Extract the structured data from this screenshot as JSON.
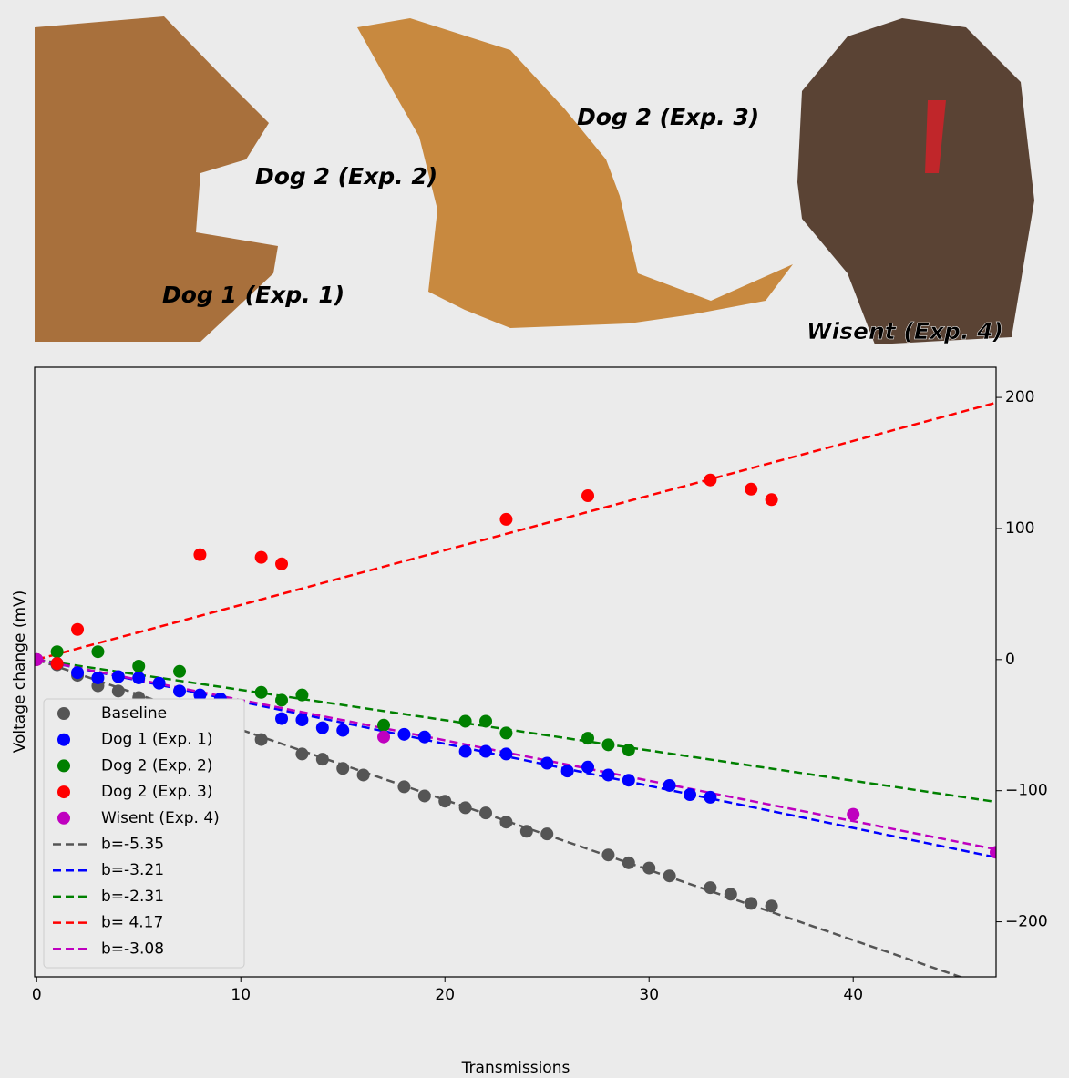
{
  "photo_labels": [
    "Dog 1 (Exp. 1)",
    "Dog 2 (Exp. 2)",
    "Dog 2 (Exp. 3)",
    "Wisent (Exp. 4)"
  ],
  "chart_data": {
    "type": "scatter",
    "xlabel": "Transmissions",
    "ylabel": "Voltage change (mV)",
    "xlim": [
      -0.1,
      47
    ],
    "ylim": [
      -242,
      223
    ],
    "xticks": [
      0,
      10,
      20,
      30,
      40
    ],
    "yticks": [
      {
        "value": -200,
        "label": "−200"
      },
      {
        "value": -100,
        "label": "−100"
      },
      0,
      100,
      200
    ],
    "legend": "lower left",
    "series": [
      {
        "name": "Baseline",
        "color": "#555555",
        "x": [
          0,
          1,
          2,
          3,
          4,
          5,
          6,
          8,
          11,
          13,
          14,
          15,
          16,
          18,
          19,
          20,
          21,
          22,
          23,
          24,
          25,
          28,
          29,
          30,
          31,
          33,
          34,
          35,
          36
        ],
        "values": [
          0,
          -4,
          -12,
          -20,
          -24,
          -29,
          -36,
          -45,
          -61,
          -72,
          -76,
          -83,
          -88,
          -97,
          -104,
          -108,
          -113,
          -117,
          -124,
          -131,
          -133,
          -149,
          -155,
          -159,
          -165,
          -174,
          -179,
          -186,
          -188
        ]
      },
      {
        "name": "Dog 1 (Exp. 1)",
        "color": "#0000ff",
        "x": [
          0,
          1,
          2,
          3,
          4,
          5,
          6,
          7,
          8,
          9,
          12,
          13,
          14,
          15,
          18,
          19,
          21,
          22,
          23,
          25,
          26,
          27,
          28,
          29,
          31,
          32,
          33
        ],
        "values": [
          0,
          -3,
          -10,
          -14,
          -13,
          -14,
          -18,
          -24,
          -27,
          -30,
          -45,
          -46,
          -52,
          -54,
          -57,
          -59,
          -70,
          -70,
          -72,
          -79,
          -85,
          -82,
          -88,
          -92,
          -96,
          -103,
          -105
        ]
      },
      {
        "name": "Dog 2 (Exp. 2)",
        "color": "#008000",
        "x": [
          1,
          3,
          5,
          7,
          11,
          12,
          13,
          17,
          21,
          22,
          23,
          27,
          28,
          29
        ],
        "values": [
          6,
          6,
          -5,
          -9,
          -25,
          -31,
          -27,
          -50,
          -47,
          -47,
          -56,
          -60,
          -65,
          -69
        ]
      },
      {
        "name": "Dog 2 (Exp. 3)",
        "color": "#ff0000",
        "x": [
          0,
          1,
          2,
          8,
          11,
          12,
          23,
          27,
          33,
          35,
          36
        ],
        "values": [
          0,
          -3,
          23,
          80,
          78,
          73,
          107,
          125,
          137,
          130,
          122
        ]
      },
      {
        "name": "Wisent (Exp. 4)",
        "color": "#bf00bf",
        "x": [
          0,
          17,
          40,
          47
        ],
        "values": [
          0,
          -59,
          -118,
          -147
        ]
      }
    ],
    "fits": [
      {
        "name": "b=-5.35",
        "color": "#555555",
        "slope": -5.35
      },
      {
        "name": "b=-3.21",
        "color": "#0000ff",
        "slope": -3.21
      },
      {
        "name": "b=-2.31",
        "color": "#008000",
        "slope": -2.31
      },
      {
        "name": "b= 4.17",
        "color": "#ff0000",
        "slope": 4.17
      },
      {
        "name": "b=-3.08",
        "color": "#bf00bf",
        "slope": -3.08
      }
    ]
  }
}
